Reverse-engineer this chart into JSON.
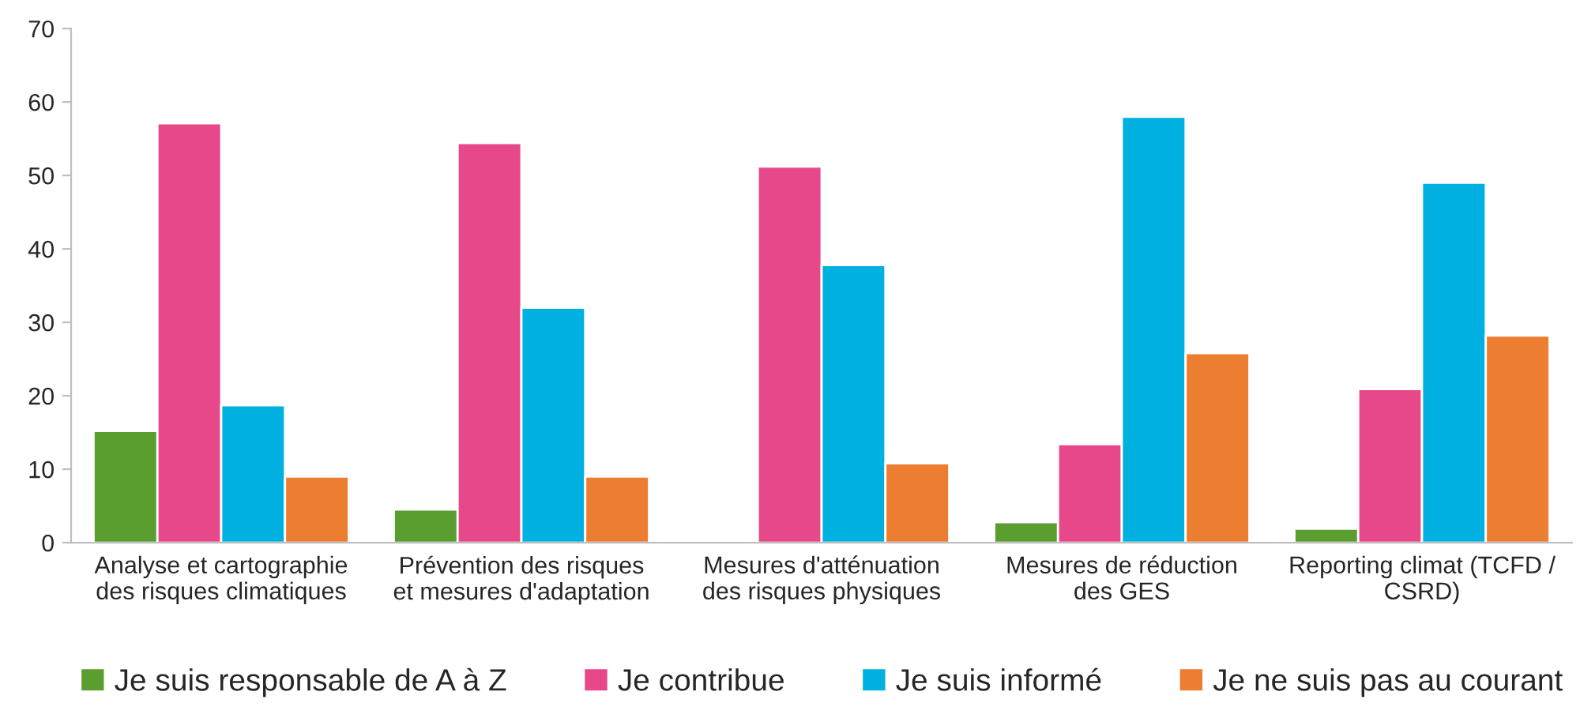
{
  "chart_data": {
    "type": "bar",
    "categories": [
      "Analyse et cartographie\ndes risques climatiques",
      "Prévention des risques\net mesures d'adaptation",
      "Mesures d'atténuation\ndes risques physiques",
      "Mesures de réduction\ndes GES",
      "Reporting climat (TCFD /\nCSRD)"
    ],
    "series": [
      {
        "name": "Je suis responsable de A à Z",
        "color": "#5a9e2f",
        "values": [
          15.2,
          4.5,
          null,
          2.8,
          1.9
        ]
      },
      {
        "name": "Je contribue",
        "color": "#e6488a",
        "values": [
          57.1,
          54.4,
          51.2,
          13.4,
          20.9
        ]
      },
      {
        "name": "Je suis informé",
        "color": "#00b0e0",
        "values": [
          18.7,
          32,
          37.8,
          58,
          49
        ]
      },
      {
        "name": "Je ne suis pas au courant",
        "color": "#ed7d31",
        "values": [
          9,
          9,
          10.8,
          25.8,
          28.2
        ]
      }
    ],
    "ylim": [
      0,
      70
    ],
    "yticks": [
      0,
      10,
      20,
      30,
      40,
      50,
      60,
      70
    ],
    "grid": false,
    "legend": "bottom"
  }
}
